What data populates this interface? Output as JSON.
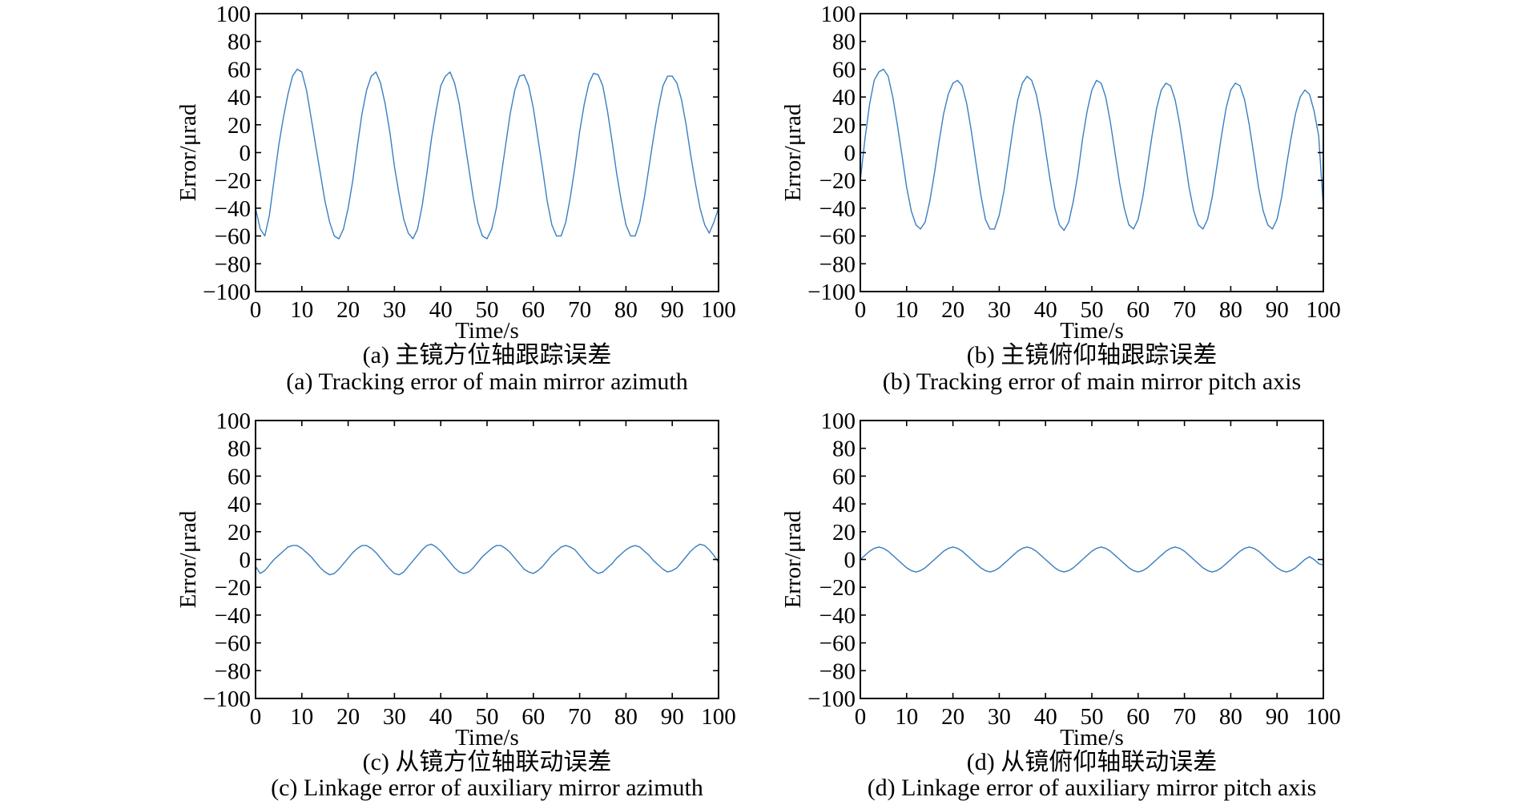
{
  "chart_data": [
    {
      "id": "a",
      "type": "line",
      "caption_cn": "(a) 主镜方位轴跟踪误差",
      "caption_en": "(a) Tracking error of main mirror azimuth",
      "xlabel": "Time/s",
      "ylabel": "Error/μrad",
      "xlim": [
        0,
        100
      ],
      "ylim": [
        -100,
        100
      ],
      "xticks": [
        0,
        10,
        20,
        30,
        40,
        50,
        60,
        70,
        80,
        90,
        100
      ],
      "yticks": [
        100,
        80,
        60,
        40,
        20,
        0,
        -20,
        -40,
        -60,
        -80,
        -100
      ],
      "series": [
        {
          "name": "error",
          "color": "#3a7fc0",
          "x": [
            0,
            1,
            2,
            3,
            4,
            5,
            6,
            7,
            8,
            9,
            10,
            11,
            12,
            13,
            14,
            15,
            16,
            17,
            18,
            19,
            20,
            21,
            22,
            23,
            24,
            25,
            26,
            27,
            28,
            29,
            30,
            31,
            32,
            33,
            34,
            35,
            36,
            37,
            38,
            39,
            40,
            41,
            42,
            43,
            44,
            45,
            46,
            47,
            48,
            49,
            50,
            51,
            52,
            53,
            54,
            55,
            56,
            57,
            58,
            59,
            60,
            61,
            62,
            63,
            64,
            65,
            66,
            67,
            68,
            69,
            70,
            71,
            72,
            73,
            74,
            75,
            76,
            77,
            78,
            79,
            80,
            81,
            82,
            83,
            84,
            85,
            86,
            87,
            88,
            89,
            90,
            91,
            92,
            93,
            94,
            95,
            96,
            97,
            98,
            99,
            100
          ],
          "y": [
            -40,
            -55,
            -60,
            -45,
            -20,
            5,
            25,
            42,
            55,
            60,
            58,
            45,
            25,
            5,
            -15,
            -35,
            -50,
            -60,
            -62,
            -55,
            -40,
            -20,
            5,
            28,
            45,
            55,
            58,
            50,
            35,
            15,
            -10,
            -30,
            -48,
            -58,
            -62,
            -55,
            -38,
            -15,
            10,
            30,
            48,
            55,
            58,
            50,
            35,
            12,
            -10,
            -32,
            -50,
            -60,
            -62,
            -55,
            -40,
            -18,
            5,
            28,
            45,
            55,
            56,
            48,
            32,
            10,
            -12,
            -35,
            -52,
            -60,
            -60,
            -50,
            -32,
            -10,
            15,
            35,
            50,
            57,
            56,
            48,
            30,
            8,
            -15,
            -35,
            -52,
            -60,
            -60,
            -50,
            -32,
            -10,
            12,
            32,
            48,
            55,
            55,
            50,
            38,
            20,
            -2,
            -22,
            -40,
            -52,
            -58,
            -50,
            -40
          ]
        }
      ]
    },
    {
      "id": "b",
      "type": "line",
      "caption_cn": "(b) 主镜俯仰轴跟踪误差",
      "caption_en": "(b) Tracking error of main mirror pitch axis",
      "xlabel": "Time/s",
      "ylabel": "Error/μrad",
      "xlim": [
        0,
        100
      ],
      "ylim": [
        -100,
        100
      ],
      "xticks": [
        0,
        10,
        20,
        30,
        40,
        50,
        60,
        70,
        80,
        90,
        100
      ],
      "yticks": [
        100,
        80,
        60,
        40,
        20,
        0,
        -20,
        -40,
        -60,
        -80,
        -100
      ],
      "series": [
        {
          "name": "error",
          "color": "#3a7fc0",
          "x": [
            0,
            1,
            2,
            3,
            4,
            5,
            6,
            7,
            8,
            9,
            10,
            11,
            12,
            13,
            14,
            15,
            16,
            17,
            18,
            19,
            20,
            21,
            22,
            23,
            24,
            25,
            26,
            27,
            28,
            29,
            30,
            31,
            32,
            33,
            34,
            35,
            36,
            37,
            38,
            39,
            40,
            41,
            42,
            43,
            44,
            45,
            46,
            47,
            48,
            49,
            50,
            51,
            52,
            53,
            54,
            55,
            56,
            57,
            58,
            59,
            60,
            61,
            62,
            63,
            64,
            65,
            66,
            67,
            68,
            69,
            70,
            71,
            72,
            73,
            74,
            75,
            76,
            77,
            78,
            79,
            80,
            81,
            82,
            83,
            84,
            85,
            86,
            87,
            88,
            89,
            90,
            91,
            92,
            93,
            94,
            95,
            96,
            97,
            98,
            99,
            100
          ],
          "y": [
            -20,
            10,
            35,
            52,
            58,
            60,
            55,
            40,
            20,
            -2,
            -25,
            -42,
            -52,
            -55,
            -50,
            -35,
            -15,
            8,
            28,
            42,
            50,
            52,
            48,
            35,
            15,
            -8,
            -30,
            -48,
            -55,
            -55,
            -45,
            -28,
            -5,
            18,
            38,
            50,
            55,
            52,
            42,
            25,
            2,
            -20,
            -40,
            -52,
            -56,
            -50,
            -35,
            -15,
            10,
            30,
            45,
            52,
            50,
            40,
            22,
            0,
            -22,
            -40,
            -52,
            -55,
            -48,
            -32,
            -10,
            12,
            32,
            45,
            50,
            48,
            38,
            20,
            -2,
            -25,
            -42,
            -52,
            -55,
            -48,
            -32,
            -10,
            12,
            32,
            45,
            50,
            48,
            38,
            20,
            -2,
            -25,
            -42,
            -52,
            -55,
            -48,
            -32,
            -10,
            10,
            28,
            40,
            45,
            42,
            30,
            12,
            -40
          ]
        }
      ]
    },
    {
      "id": "c",
      "type": "line",
      "caption_cn": "(c) 从镜方位轴联动误差",
      "caption_en": "(c) Linkage error of auxiliary mirror azimuth",
      "xlabel": "Time/s",
      "ylabel": "Error/μrad",
      "xlim": [
        0,
        100
      ],
      "ylim": [
        -100,
        100
      ],
      "xticks": [
        0,
        10,
        20,
        30,
        40,
        50,
        60,
        70,
        80,
        90,
        100
      ],
      "yticks": [
        100,
        80,
        60,
        40,
        20,
        0,
        -20,
        -40,
        -60,
        -80,
        -100
      ],
      "series": [
        {
          "name": "error",
          "color": "#3a7fc0",
          "x": [
            0,
            1,
            2,
            3,
            4,
            5,
            6,
            7,
            8,
            9,
            10,
            11,
            12,
            13,
            14,
            15,
            16,
            17,
            18,
            19,
            20,
            21,
            22,
            23,
            24,
            25,
            26,
            27,
            28,
            29,
            30,
            31,
            32,
            33,
            34,
            35,
            36,
            37,
            38,
            39,
            40,
            41,
            42,
            43,
            44,
            45,
            46,
            47,
            48,
            49,
            50,
            51,
            52,
            53,
            54,
            55,
            56,
            57,
            58,
            59,
            60,
            61,
            62,
            63,
            64,
            65,
            66,
            67,
            68,
            69,
            70,
            71,
            72,
            73,
            74,
            75,
            76,
            77,
            78,
            79,
            80,
            81,
            82,
            83,
            84,
            85,
            86,
            87,
            88,
            89,
            90,
            91,
            92,
            93,
            94,
            95,
            96,
            97,
            98,
            99,
            100
          ],
          "y": [
            -5,
            -10,
            -8,
            -4,
            0,
            3,
            6,
            9,
            10,
            10,
            8,
            5,
            2,
            -2,
            -6,
            -9,
            -11,
            -10,
            -7,
            -3,
            1,
            5,
            8,
            10,
            10,
            8,
            5,
            1,
            -3,
            -7,
            -10,
            -11,
            -9,
            -5,
            -1,
            3,
            7,
            10,
            11,
            9,
            6,
            2,
            -2,
            -6,
            -9,
            -10,
            -9,
            -6,
            -2,
            2,
            5,
            8,
            10,
            10,
            8,
            5,
            1,
            -3,
            -7,
            -9,
            -10,
            -8,
            -5,
            -1,
            3,
            6,
            9,
            10,
            9,
            7,
            3,
            -1,
            -5,
            -8,
            -10,
            -9,
            -6,
            -3,
            1,
            4,
            7,
            9,
            10,
            9,
            6,
            3,
            -1,
            -4,
            -7,
            -9,
            -8,
            -6,
            -2,
            2,
            6,
            9,
            11,
            10,
            7,
            3,
            -2
          ]
        }
      ]
    },
    {
      "id": "d",
      "type": "line",
      "caption_cn": "(d) 从镜俯仰轴联动误差",
      "caption_en": "(d) Linkage error of auxiliary mirror pitch axis",
      "xlabel": "Time/s",
      "ylabel": "Error/μrad",
      "xlim": [
        0,
        100
      ],
      "ylim": [
        -100,
        100
      ],
      "xticks": [
        0,
        10,
        20,
        30,
        40,
        50,
        60,
        70,
        80,
        90,
        100
      ],
      "yticks": [
        100,
        80,
        60,
        40,
        20,
        0,
        -20,
        -40,
        -60,
        -80,
        -100
      ],
      "series": [
        {
          "name": "error",
          "color": "#3a7fc0",
          "x": [
            0,
            1,
            2,
            3,
            4,
            5,
            6,
            7,
            8,
            9,
            10,
            11,
            12,
            13,
            14,
            15,
            16,
            17,
            18,
            19,
            20,
            21,
            22,
            23,
            24,
            25,
            26,
            27,
            28,
            29,
            30,
            31,
            32,
            33,
            34,
            35,
            36,
            37,
            38,
            39,
            40,
            41,
            42,
            43,
            44,
            45,
            46,
            47,
            48,
            49,
            50,
            51,
            52,
            53,
            54,
            55,
            56,
            57,
            58,
            59,
            60,
            61,
            62,
            63,
            64,
            65,
            66,
            67,
            68,
            69,
            70,
            71,
            72,
            73,
            74,
            75,
            76,
            77,
            78,
            79,
            80,
            81,
            82,
            83,
            84,
            85,
            86,
            87,
            88,
            89,
            90,
            91,
            92,
            93,
            94,
            95,
            96,
            97,
            98,
            99,
            100
          ],
          "y": [
            0,
            3,
            6,
            8,
            9,
            8,
            6,
            3,
            0,
            -3,
            -6,
            -8,
            -9,
            -8,
            -6,
            -3,
            0,
            3,
            6,
            8,
            9,
            8,
            6,
            3,
            0,
            -3,
            -6,
            -8,
            -9,
            -8,
            -6,
            -3,
            0,
            3,
            6,
            8,
            9,
            8,
            6,
            3,
            0,
            -3,
            -6,
            -8,
            -9,
            -8,
            -6,
            -3,
            0,
            3,
            6,
            8,
            9,
            8,
            6,
            3,
            0,
            -3,
            -6,
            -8,
            -9,
            -8,
            -6,
            -3,
            0,
            3,
            6,
            8,
            9,
            8,
            6,
            3,
            0,
            -3,
            -6,
            -8,
            -9,
            -8,
            -6,
            -3,
            0,
            3,
            6,
            8,
            9,
            8,
            6,
            3,
            0,
            -3,
            -6,
            -8,
            -9,
            -8,
            -6,
            -3,
            0,
            2,
            0,
            -3,
            -4
          ]
        }
      ]
    }
  ]
}
